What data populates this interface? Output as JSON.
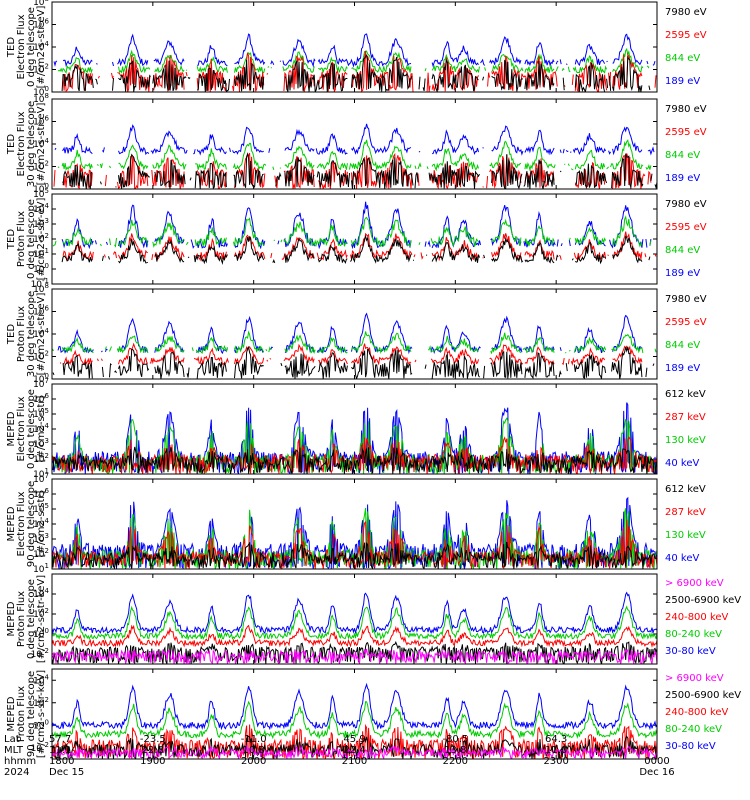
{
  "chart_data": {
    "type": "line",
    "x_axis": {
      "row_labels": [
        "Lat",
        "MLT",
        "hhmm",
        "2024"
      ],
      "ticks": [
        {
          "lat": "57.7",
          "mlt": "11.1",
          "hhmm": "1800",
          "date": "Dec 15"
        },
        {
          "lat": "-23.5",
          "mlt": "22.8",
          "hhmm": "1900",
          "date": ""
        },
        {
          "lat": "-11.0",
          "mlt": "10.8",
          "hhmm": "2000",
          "date": ""
        },
        {
          "lat": "45.9",
          "mlt": "22.4",
          "hhmm": "2100",
          "date": ""
        },
        {
          "lat": "-80.5",
          "mlt": "13.8",
          "hhmm": "2200",
          "date": ""
        },
        {
          "lat": "64.3",
          "mlt": "11.0",
          "hhmm": "2300",
          "date": ""
        },
        {
          "lat": "",
          "mlt": "",
          "hhmm": "0000",
          "date": "Dec 16"
        }
      ]
    },
    "panels": [
      {
        "id": "ted-electron-0",
        "ylabel": [
          "TED",
          "Electron Flux",
          "0 deg telescope",
          "[#/cm2-s-str-eV]"
        ],
        "ylim_log": [
          0,
          8
        ],
        "ytick_labels": [
          "10^0",
          "10^2",
          "10^4",
          "10^6",
          "10^8"
        ],
        "legend": [
          {
            "label": "7980 eV",
            "color": "#000000"
          },
          {
            "label": "2595 eV",
            "color": "#ff0000"
          },
          {
            "label": "844 eV",
            "color": "#00cc00"
          },
          {
            "label": "189 eV",
            "color": "#0000ff"
          }
        ],
        "series": [
          {
            "label": "189 eV",
            "color": "#0000ff",
            "base": 2.6,
            "peak": 2.4
          },
          {
            "label": "844 eV",
            "color": "#00cc00",
            "base": 2.0,
            "peak": 1.6
          },
          {
            "label": "2595 eV",
            "color": "#ff0000",
            "base": 1.5,
            "peak": 2.0
          },
          {
            "label": "7980 eV",
            "color": "#000000",
            "base": 1.3,
            "peak": 1.8
          }
        ]
      },
      {
        "id": "ted-electron-30",
        "ylabel": [
          "TED",
          "Electron Flux",
          "30 deg telescope",
          "[#/cm2-s-str-eV]"
        ],
        "ylim_log": [
          0,
          8
        ],
        "ytick_labels": [
          "10^0",
          "10^2",
          "10^4",
          "10^6",
          "10^8"
        ],
        "legend": [
          {
            "label": "7980 eV",
            "color": "#000000"
          },
          {
            "label": "2595 eV",
            "color": "#ff0000"
          },
          {
            "label": "844 eV",
            "color": "#00cc00"
          },
          {
            "label": "189 eV",
            "color": "#0000ff"
          }
        ],
        "series": [
          {
            "label": "189 eV",
            "color": "#0000ff",
            "base": 3.4,
            "peak": 2.2
          },
          {
            "label": "844 eV",
            "color": "#00cc00",
            "base": 2.0,
            "peak": 2.2
          },
          {
            "label": "2595 eV",
            "color": "#ff0000",
            "base": 1.4,
            "peak": 1.8
          },
          {
            "label": "7980 eV",
            "color": "#000000",
            "base": 1.3,
            "peak": 1.7
          }
        ]
      },
      {
        "id": "ted-proton-0",
        "ylabel": [
          "TED",
          "Proton Flux",
          "0 deg telescope",
          "[#/cm2-s-str-eV]"
        ],
        "ylim_log": [
          -1,
          5
        ],
        "ytick_labels": [
          "10^-1",
          "10^0",
          "10^1",
          "10^2",
          "10^3",
          "10^4",
          "10^5"
        ],
        "legend": [
          {
            "label": "7980 eV",
            "color": "#000000"
          },
          {
            "label": "2595 eV",
            "color": "#ff0000"
          },
          {
            "label": "844 eV",
            "color": "#00cc00"
          },
          {
            "label": "189 eV",
            "color": "#0000ff"
          }
        ],
        "series": [
          {
            "label": "189 eV",
            "color": "#0000ff",
            "base": 1.7,
            "peak": 2.6
          },
          {
            "label": "844 eV",
            "color": "#00cc00",
            "base": 1.8,
            "peak": 1.5
          },
          {
            "label": "2595 eV",
            "color": "#ff0000",
            "base": 0.9,
            "peak": 1.4
          },
          {
            "label": "7980 eV",
            "color": "#000000",
            "base": 0.7,
            "peak": 1.3
          }
        ]
      },
      {
        "id": "ted-proton-30",
        "ylabel": [
          "TED",
          "Proton Flux",
          "30 deg telescope",
          "[#/cm2-s-str-eV]"
        ],
        "ylim_log": [
          0,
          8
        ],
        "ytick_labels": [
          "10^0",
          "10^2",
          "10^4",
          "10^6",
          "10^8"
        ],
        "legend": [
          {
            "label": "7980 eV",
            "color": "#000000"
          },
          {
            "label": "2595 eV",
            "color": "#ff0000"
          },
          {
            "label": "844 eV",
            "color": "#00cc00"
          },
          {
            "label": "189 eV",
            "color": "#0000ff"
          }
        ],
        "series": [
          {
            "label": "189 eV",
            "color": "#0000ff",
            "base": 2.6,
            "peak": 3.0
          },
          {
            "label": "844 eV",
            "color": "#00cc00",
            "base": 2.6,
            "peak": 1.4
          },
          {
            "label": "2595 eV",
            "color": "#ff0000",
            "base": 1.6,
            "peak": 1.4
          },
          {
            "label": "7980 eV",
            "color": "#000000",
            "base": 1.2,
            "peak": 1.5
          }
        ]
      },
      {
        "id": "meped-electron-0",
        "ylabel": [
          "MEPED",
          "Electron Flux",
          "0 deg telescope",
          "[#/cm2-s-str]"
        ],
        "ylim_log": [
          1,
          7
        ],
        "ytick_labels": [
          "10^1",
          "10^2",
          "10^3",
          "10^4",
          "10^5",
          "10^6",
          "10^7"
        ],
        "legend": [
          {
            "label": "612 keV",
            "color": "#000000"
          },
          {
            "label": "287 keV",
            "color": "#ff0000"
          },
          {
            "label": "130 keV",
            "color": "#00cc00"
          },
          {
            "label": "40 keV",
            "color": "#0000ff"
          }
        ],
        "series": [
          {
            "label": "40 keV",
            "color": "#0000ff",
            "base": 2.2,
            "peak": 3.6
          },
          {
            "label": "130 keV",
            "color": "#00cc00",
            "base": 2.0,
            "peak": 2.8
          },
          {
            "label": "287 keV",
            "color": "#ff0000",
            "base": 2.0,
            "peak": 1.4
          },
          {
            "label": "612 keV",
            "color": "#000000",
            "base": 1.9,
            "peak": 0.8
          }
        ]
      },
      {
        "id": "meped-electron-90",
        "ylabel": [
          "MEPED",
          "Electron Flux",
          "90 deg telescope",
          "[#/cm2-s-str]"
        ],
        "ylim_log": [
          1,
          7
        ],
        "ytick_labels": [
          "10^1",
          "10^2",
          "10^3",
          "10^4",
          "10^5",
          "10^6",
          "10^7"
        ],
        "legend": [
          {
            "label": "612 keV",
            "color": "#000000"
          },
          {
            "label": "287 keV",
            "color": "#ff0000"
          },
          {
            "label": "130 keV",
            "color": "#00cc00"
          },
          {
            "label": "40 keV",
            "color": "#0000ff"
          }
        ],
        "series": [
          {
            "label": "40 keV",
            "color": "#0000ff",
            "base": 2.4,
            "peak": 3.4
          },
          {
            "label": "130 keV",
            "color": "#00cc00",
            "base": 2.0,
            "peak": 3.0
          },
          {
            "label": "287 keV",
            "color": "#ff0000",
            "base": 1.9,
            "peak": 2.2
          },
          {
            "label": "612 keV",
            "color": "#000000",
            "base": 1.8,
            "peak": 0.8
          }
        ]
      },
      {
        "id": "meped-proton-0",
        "ylabel": [
          "MEPED",
          "Proton Flux",
          "0 deg telescope",
          "[#/cm2-s-str-keV]"
        ],
        "ylim_log": [
          -3,
          6
        ],
        "ytick_labels": [
          "10^-2",
          "10^0",
          "10^2",
          "10^4"
        ],
        "legend": [
          {
            "label": "> 6900 keV",
            "color": "#ff00ff"
          },
          {
            "label": "2500-6900 keV",
            "color": "#000000"
          },
          {
            "label": "240-800 keV",
            "color": "#ff0000"
          },
          {
            "label": "80-240 keV",
            "color": "#00cc00"
          },
          {
            "label": "30-80 keV",
            "color": "#0000ff"
          }
        ],
        "series": [
          {
            "label": "30-80 keV",
            "color": "#0000ff",
            "base": 0.4,
            "peak": 3.8
          },
          {
            "label": "80-240 keV",
            "color": "#00cc00",
            "base": -0.2,
            "peak": 3.0
          },
          {
            "label": "240-800 keV",
            "color": "#ff0000",
            "base": -0.9,
            "peak": 1.6
          },
          {
            "label": "2500-6900 keV",
            "color": "#000000",
            "base": -1.6,
            "peak": 0.6
          },
          {
            "label": "> 6900 keV",
            "color": "#ff00ff",
            "base": -2.0,
            "peak": 0.2
          }
        ]
      },
      {
        "id": "meped-proton-90",
        "ylabel": [
          "MEPED",
          "Proton Flux",
          "90 deg telescope",
          "[#/cm2-s-str-keV]"
        ],
        "ylim_log": [
          -3,
          5
        ],
        "ytick_labels": [
          "10^-2",
          "10^0",
          "10^2",
          "10^4"
        ],
        "legend": [
          {
            "label": "> 6900 keV",
            "color": "#ff00ff"
          },
          {
            "label": "2500-6900 keV",
            "color": "#000000"
          },
          {
            "label": "240-800 keV",
            "color": "#ff0000"
          },
          {
            "label": "80-240 keV",
            "color": "#00cc00"
          },
          {
            "label": "30-80 keV",
            "color": "#0000ff"
          }
        ],
        "series": [
          {
            "label": "30-80 keV",
            "color": "#0000ff",
            "base": 0.0,
            "peak": 3.6
          },
          {
            "label": "80-240 keV",
            "color": "#00cc00",
            "base": -0.8,
            "peak": 2.8
          },
          {
            "label": "240-800 keV",
            "color": "#ff0000",
            "base": -1.6,
            "peak": 1.6
          },
          {
            "label": "2500-6900 keV",
            "color": "#000000",
            "base": -2.0,
            "peak": 0.8
          },
          {
            "label": "> 6900 keV",
            "color": "#ff00ff",
            "base": -2.4,
            "peak": 0.4
          }
        ]
      }
    ],
    "pass_centers_hhmm": [
      "1815",
      "1848",
      "1910",
      "1935",
      "1957",
      "2027",
      "2047",
      "2107",
      "2125",
      "2155",
      "2205",
      "2230",
      "2250",
      "2320",
      "2342"
    ]
  }
}
